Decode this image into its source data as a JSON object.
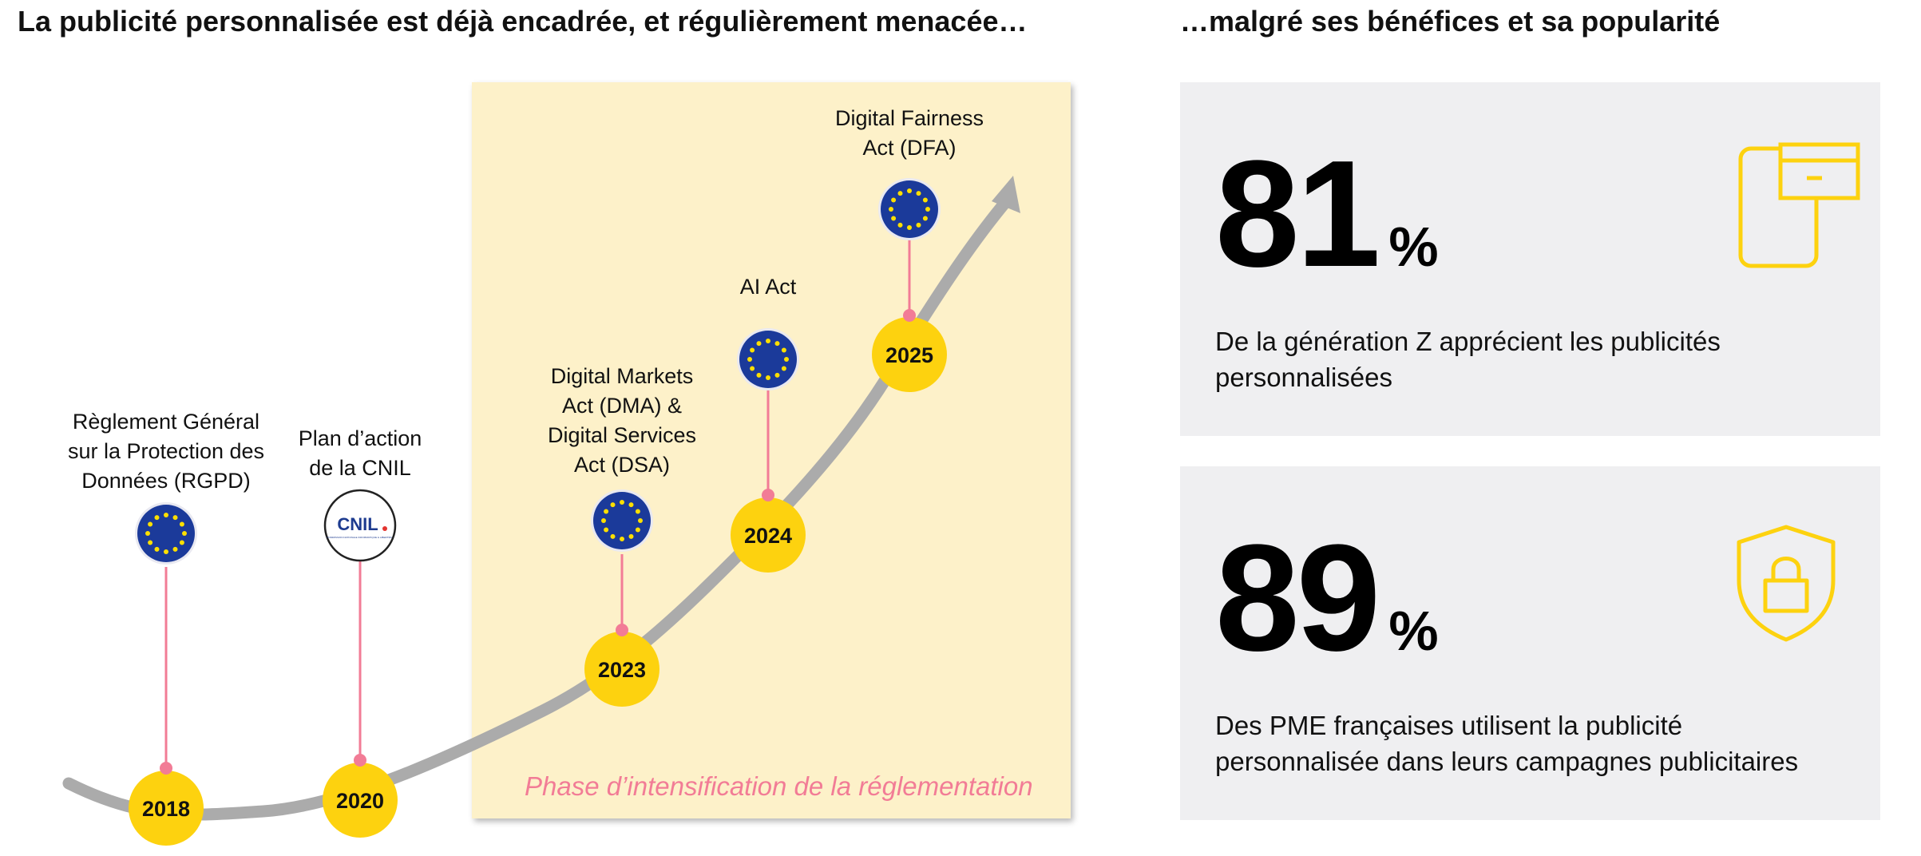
{
  "headings": {
    "left": "La publicité personnalisée est déjà encadrée, et régulièrement menacée…",
    "right": "…malgré ses bénéfices et sa popularité"
  },
  "timeline": {
    "phase_label": "Phase d’intensification de la réglementation",
    "milestones": [
      {
        "year": "2018",
        "lines": [
          "Règlement Général",
          "sur la Protection des",
          "Données (RGPD)"
        ],
        "logo": "eu-flag-icon"
      },
      {
        "year": "2020",
        "lines": [
          "Plan d’action",
          "de la CNIL"
        ],
        "logo": "cnil-logo",
        "logo_text": "CNIL",
        "logo_subtext": "COMMISSION NATIONALE INFORMATIQUE & LIBERTÉS"
      },
      {
        "year": "2023",
        "lines": [
          "Digital Markets",
          "Act (DMA) &",
          "Digital Services",
          "Act (DSA)"
        ],
        "logo": "eu-flag-icon"
      },
      {
        "year": "2024",
        "lines": [
          "AI Act"
        ],
        "logo": "eu-flag-icon"
      },
      {
        "year": "2025",
        "lines": [
          "Digital Fairness",
          "Act (DFA)"
        ],
        "logo": "eu-flag-icon"
      }
    ]
  },
  "stats": [
    {
      "value": "81",
      "unit": "%",
      "lines": [
        "De la génération Z apprécient les publicités",
        "personnalisées"
      ],
      "icon": "devices-icon"
    },
    {
      "value": "89",
      "unit": "%",
      "lines": [
        "Des PME françaises utilisent la publicité",
        "personnalisée dans leurs campagnes publicitaires"
      ],
      "icon": "shield-lock-icon"
    }
  ],
  "colors": {
    "accent_yellow": "#fdd20f",
    "connector_pink": "#f27c96",
    "phase_background": "#fdf1c9",
    "curve_gray": "#ababab",
    "eu_blue": "#1b3a9a",
    "eu_star": "#fddf00",
    "card_background": "#efeff1"
  }
}
